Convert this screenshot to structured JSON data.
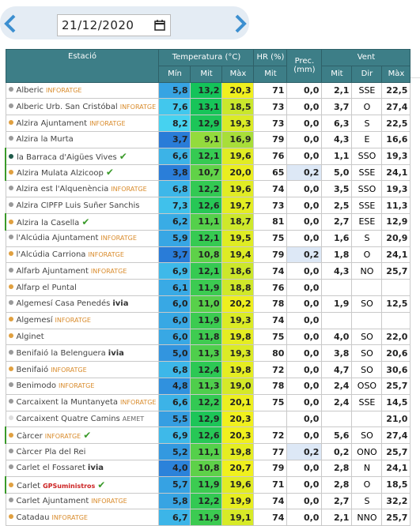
{
  "date": "21/12/2020",
  "table": {
    "headers": [
      "Estació",
      "Temperatura (°C)",
      "HR (%)",
      "Prec. (mm)",
      "Vent"
    ],
    "subheaders": [
      "Mín",
      "Mit",
      "Màx",
      "Mit",
      "Mit",
      "Dir",
      "Màx"
    ],
    "rows": [
      {
        "station": "Alberic",
        "tag": "INFORATGE",
        "check": false,
        "dot": "#999999",
        "values": [
          "5,8",
          "13,2",
          "20,3",
          "71",
          "0,0",
          "2,1",
          "SSE",
          "22,5"
        ]
      },
      {
        "station": "Alberic Urb. San Cristóbal",
        "tag": "INFORATGE",
        "check": false,
        "dot": "#999999",
        "values": [
          "7,6",
          "13,1",
          "18,5",
          "73",
          "0,0",
          "3,7",
          "O",
          "27,4"
        ]
      },
      {
        "station": "Alzira Ajuntament",
        "tag": "INFORATGE",
        "check": false,
        "dot": "#e0a040",
        "values": [
          "8,2",
          "12,9",
          "19,3",
          "73",
          "0,0",
          "6,3",
          "S",
          "22,5"
        ]
      },
      {
        "station": "Alzira la Murta",
        "tag": null,
        "check": false,
        "dot": "#999999",
        "values": [
          "3,7",
          "9,1",
          "16,9",
          "79",
          "0,0",
          "4,3",
          "E",
          "16,6"
        ]
      },
      {
        "station": "la Barraca d'Aigües Vives",
        "tag": null,
        "check": true,
        "dot": "#1f5a4a",
        "values": [
          "6,6",
          "12,1",
          "19,6",
          "76",
          "0,0",
          "1,1",
          "SSO",
          "19,3"
        ]
      },
      {
        "station": "Alzira Mulata Alzicoop",
        "tag": null,
        "check": true,
        "dot": "#e0a040",
        "values": [
          "3,8",
          "10,7",
          "20,0",
          "65",
          "0,2",
          "5,0",
          "SSE",
          "24,1"
        ]
      },
      {
        "station": "Alzira est l'Alquenència",
        "tag": "INFORATGE",
        "check": false,
        "dot": "#999999",
        "values": [
          "6,8",
          "12,2",
          "19,6",
          "74",
          "0,0",
          "3,5",
          "SSO",
          "19,3"
        ]
      },
      {
        "station": "Alzira CIPFP Luis Suñer Sanchis",
        "tag": null,
        "check": false,
        "dot": "#999999",
        "values": [
          "7,3",
          "12,6",
          "19,7",
          "73",
          "0,0",
          "2,5",
          "SSE",
          "11,3"
        ]
      },
      {
        "station": "Alzira la Casella",
        "tag": null,
        "check": true,
        "dot": "#e0a040",
        "values": [
          "6,2",
          "11,1",
          "18,7",
          "81",
          "0,0",
          "2,7",
          "ESE",
          "12,9"
        ]
      },
      {
        "station": "l'Alcúdia Ajuntament",
        "tag": "INFORATGE",
        "check": false,
        "dot": "#999999",
        "values": [
          "5,9",
          "12,1",
          "19,5",
          "75",
          "0,0",
          "1,6",
          "S",
          "20,9"
        ]
      },
      {
        "station": "l'Alcúdia Carriona",
        "tag": "INFORATGE",
        "check": false,
        "dot": "#e0a040",
        "values": [
          "3,7",
          "10,8",
          "19,4",
          "79",
          "0,2",
          "1,8",
          "O",
          "24,1"
        ]
      },
      {
        "station": "Alfarb Ajuntament",
        "tag": "INFORATGE",
        "check": false,
        "dot": "#999999",
        "values": [
          "6,9",
          "12,1",
          "18,6",
          "74",
          "0,0",
          "4,3",
          "NO",
          "25,7"
        ]
      },
      {
        "station": "Alfarp el Puntal",
        "tag": null,
        "check": false,
        "dot": "#e0a040",
        "values": [
          "6,1",
          "11,9",
          "18,8",
          "76",
          "0,0",
          null,
          null,
          null
        ]
      },
      {
        "station": "Algemesí Casa Penedés",
        "tag": "ivia",
        "check": false,
        "dot": "#999999",
        "values": [
          "6,0",
          "11,0",
          "20,2",
          "78",
          "0,0",
          "1,9",
          "SO",
          "12,5"
        ]
      },
      {
        "station": "Algemesí",
        "tag": "INFORATGE",
        "check": false,
        "dot": "#e0a040",
        "values": [
          "6,0",
          "11,9",
          "19,3",
          "74",
          "0,0",
          null,
          null,
          null
        ]
      },
      {
        "station": "Alginet",
        "tag": null,
        "check": false,
        "dot": "#e0a040",
        "values": [
          "6,0",
          "11,8",
          "19,8",
          "75",
          "0,0",
          "4,0",
          "SO",
          "22,0"
        ]
      },
      {
        "station": "Benifaió la Belenguera",
        "tag": "ivia",
        "check": false,
        "dot": "#999999",
        "values": [
          "5,0",
          "11,3",
          "19,3",
          "80",
          "0,0",
          "3,8",
          "SO",
          "20,6"
        ]
      },
      {
        "station": "Benifaió",
        "tag": "INFORATGE",
        "check": false,
        "dot": "#e0a040",
        "values": [
          "6,8",
          "12,4",
          "19,8",
          "72",
          "0,0",
          "4,7",
          "SO",
          "30,6"
        ]
      },
      {
        "station": "Benimodo",
        "tag": "INFORATGE",
        "check": false,
        "dot": "#999999",
        "values": [
          "4,8",
          "11,3",
          "19,0",
          "78",
          "0,0",
          "2,4",
          "OSO",
          "25,7"
        ]
      },
      {
        "station": "Carcaixent la Muntanyeta",
        "tag": "INFORATGE",
        "check": false,
        "dot": "#999999",
        "values": [
          "6,6",
          "12,2",
          "20,1",
          "75",
          "0,0",
          "2,4",
          "SSE",
          "14,5"
        ]
      },
      {
        "station": "Carcaixent Quatre Camins",
        "tag": "AEMET",
        "check": false,
        "dot": "#dddddd",
        "values": [
          "5,5",
          "12,9",
          "20,3",
          null,
          "0,0",
          null,
          null,
          "21,0"
        ]
      },
      {
        "station": "Càrcer",
        "tag": "INFORATGE",
        "check": true,
        "dot": "#e0a040",
        "values": [
          "6,9",
          "12,6",
          "20,3",
          "72",
          "0,0",
          "5,6",
          "SO",
          "27,4"
        ]
      },
      {
        "station": "Càrcer Pla del Rei",
        "tag": null,
        "check": false,
        "dot": "#999999",
        "values": [
          "5,2",
          "11,1",
          "19,8",
          "77",
          "0,2",
          "0,2",
          "ONO",
          "25,7"
        ]
      },
      {
        "station": "Carlet el Fossaret",
        "tag": "ivia",
        "check": false,
        "dot": "#999999",
        "values": [
          "4,0",
          "10,8",
          "20,7",
          "79",
          "0,0",
          "2,8",
          "N",
          "24,1"
        ]
      },
      {
        "station": "Carlet",
        "tag": "GPSuministros",
        "check": true,
        "dot": "#e0a040",
        "values": [
          "5,7",
          "11,9",
          "19,6",
          "71",
          "0,0",
          "2,8",
          "O",
          "18,5"
        ]
      },
      {
        "station": "Carlet Ajuntament",
        "tag": "INFORATGE",
        "check": false,
        "dot": "#999999",
        "values": [
          "5,8",
          "12,2",
          "19,9",
          "74",
          "0,0",
          "2,7",
          "S",
          "32,2"
        ]
      },
      {
        "station": "Catadau",
        "tag": "INFORATGE",
        "check": false,
        "dot": "#e0a040",
        "values": [
          "6,7",
          "11,9",
          "19,1",
          "74",
          "0,0",
          "2,1",
          "NNO",
          "25,7"
        ]
      }
    ]
  }
}
